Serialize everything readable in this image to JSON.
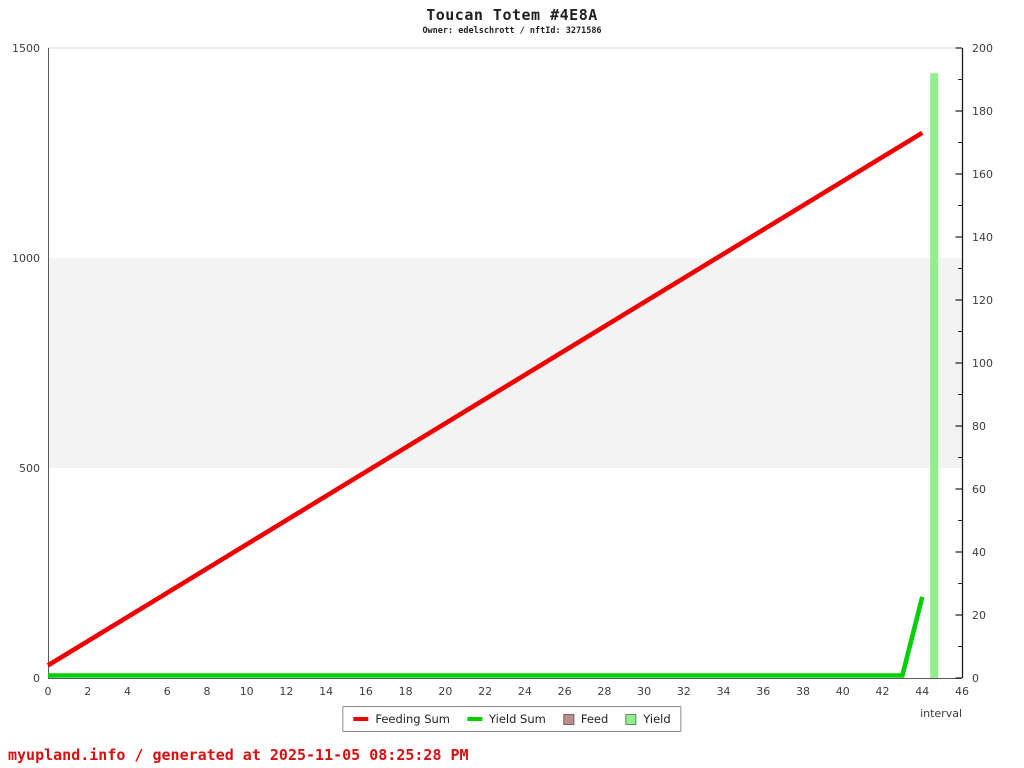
{
  "header": {
    "title": "Toucan Totem #4E8A",
    "subtitle": "Owner: edelschrott / nftId: 3271586"
  },
  "footer": {
    "text": "myupland.info / generated at 2025-11-05 08:25:28 PM",
    "color": "#d90e0e"
  },
  "legend": {
    "items": [
      {
        "label": "Feeding Sum",
        "swatch": "line",
        "color": "#ee0000"
      },
      {
        "label": "Yield Sum",
        "swatch": "line",
        "color": "#00d000"
      },
      {
        "label": "Feed",
        "swatch": "box",
        "color": "#bc8f8f"
      },
      {
        "label": "Yield",
        "swatch": "box",
        "color": "#90ee90"
      }
    ]
  },
  "chart_data": {
    "type": "line",
    "title": "Toucan Totem #4E8A",
    "subtitle": "Owner: edelschrott / nftId: 3271586",
    "xlabel": "interval",
    "x_axis": {
      "range": [
        0,
        46
      ],
      "ticks": [
        0,
        2,
        4,
        6,
        8,
        10,
        12,
        14,
        16,
        18,
        20,
        22,
        24,
        26,
        28,
        30,
        32,
        34,
        36,
        38,
        40,
        42,
        44,
        46
      ]
    },
    "left_axis": {
      "range": [
        0,
        1500
      ],
      "ticks": [
        0,
        500,
        1000,
        1500
      ]
    },
    "right_axis": {
      "range": [
        0,
        200
      ],
      "ticks": [
        0,
        20,
        40,
        60,
        80,
        100,
        120,
        140,
        160,
        180,
        200
      ],
      "minor_ticks": [
        10,
        30,
        50,
        70,
        90,
        110,
        130,
        150,
        170,
        190
      ]
    },
    "bands": [
      {
        "from": 500,
        "to": 1000,
        "color": "#f3f3f3"
      }
    ],
    "gridline_top": {
      "value": 1500,
      "color": "#d8d8d8"
    },
    "series": [
      {
        "name": "Feeding Sum",
        "type": "line",
        "axis": "left",
        "color": "#ee0000",
        "points": [
          {
            "x": 0,
            "y": 30
          },
          {
            "x": 44,
            "y": 1298
          }
        ]
      },
      {
        "name": "Yield Sum",
        "type": "line",
        "axis": "left",
        "color": "#00d000",
        "points": [
          {
            "x": 0,
            "y": 0
          },
          {
            "x": 43,
            "y": 0
          },
          {
            "x": 44,
            "y": 193
          }
        ]
      },
      {
        "name": "Feed",
        "type": "bar",
        "axis": "right",
        "color": "#bc8f8f",
        "points": []
      },
      {
        "name": "Yield",
        "type": "bar",
        "axis": "right",
        "color": "#90ee90",
        "points": [
          {
            "x": 44.6,
            "y": 192
          }
        ]
      }
    ],
    "legend_position": "bottom-center",
    "grid": "banded"
  }
}
